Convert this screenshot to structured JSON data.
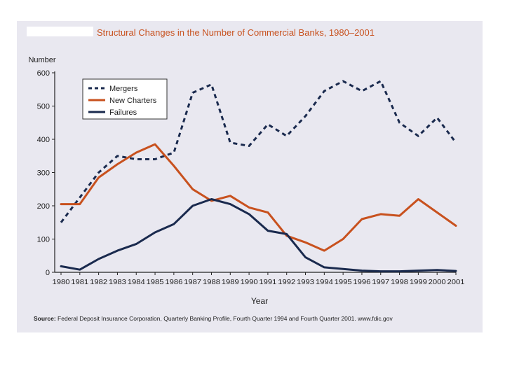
{
  "chart_data": {
    "type": "line",
    "title": "Structural Changes in the Number of Commercial Banks, 1980–2001",
    "ylabel": "Number",
    "xlabel": "Year",
    "ylim": [
      0,
      600
    ],
    "yticks": [
      0,
      100,
      200,
      300,
      400,
      500,
      600
    ],
    "categories": [
      "1980",
      "1981",
      "1982",
      "1983",
      "1984",
      "1985",
      "1986",
      "1987",
      "1988",
      "1989",
      "1990",
      "1991",
      "1992",
      "1993",
      "1994",
      "1995",
      "1996",
      "1997",
      "1998",
      "1999",
      "2000",
      "2001"
    ],
    "series": [
      {
        "name": "Mergers",
        "color": "#1a2a4e",
        "style": "dotted",
        "values": [
          150,
          225,
          300,
          350,
          340,
          340,
          360,
          540,
          565,
          390,
          380,
          445,
          410,
          470,
          545,
          575,
          545,
          575,
          450,
          410,
          465,
          390
        ]
      },
      {
        "name": "New Charters",
        "color": "#c8511e",
        "style": "solid",
        "values": [
          205,
          205,
          285,
          325,
          360,
          385,
          320,
          250,
          215,
          230,
          195,
          180,
          110,
          90,
          65,
          100,
          160,
          175,
          170,
          220,
          180,
          140
        ]
      },
      {
        "name": "Failures",
        "color": "#1a2a4e",
        "style": "solid",
        "values": [
          18,
          8,
          40,
          65,
          85,
          120,
          145,
          200,
          220,
          205,
          175,
          125,
          115,
          45,
          15,
          10,
          5,
          3,
          3,
          5,
          7,
          4
        ]
      }
    ],
    "legend": "top-left"
  },
  "source": {
    "prefix": "Source:",
    "text": "Federal Deposit Insurance Corporation, Quarterly Banking Profile, Fourth Quarter 1994 and Fourth Quarter 2001. www.fdic.gov"
  }
}
